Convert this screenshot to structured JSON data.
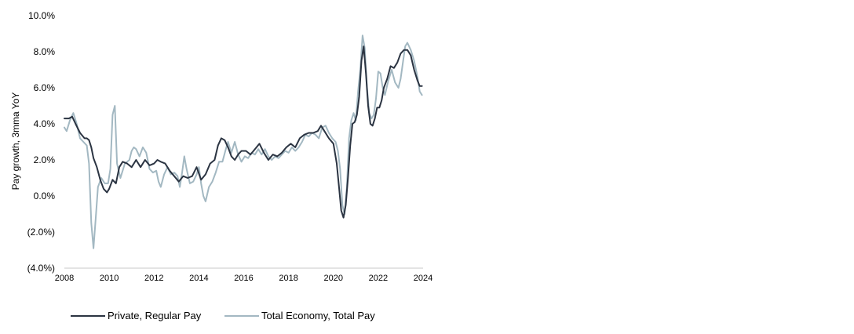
{
  "chart_data": {
    "type": "line",
    "title": "",
    "xlabel": "",
    "ylabel": "Pay growth, 3mma YoY",
    "xlim": [
      2008,
      2024
    ],
    "ylim": [
      -4,
      10
    ],
    "x_ticks": [
      "2008",
      "2010",
      "2012",
      "2014",
      "2016",
      "2018",
      "2020",
      "2022",
      "2024"
    ],
    "y_ticks": [
      "(4.0%)",
      "(2.0%)",
      "0.0%",
      "2.0%",
      "4.0%",
      "6.0%",
      "8.0%",
      "10.0%"
    ],
    "grid": false,
    "legend_position": "bottom",
    "series": [
      {
        "name": "Private, Regular Pay",
        "color": "#2b3442",
        "x": [
          2008.0,
          2008.2,
          2008.35,
          2008.5,
          2008.7,
          2008.9,
          2009.0,
          2009.1,
          2009.2,
          2009.3,
          2009.45,
          2009.6,
          2009.75,
          2009.9,
          2010.0,
          2010.15,
          2010.3,
          2010.45,
          2010.6,
          2010.8,
          2011.0,
          2011.2,
          2011.4,
          2011.6,
          2011.8,
          2012.0,
          2012.15,
          2012.3,
          2012.5,
          2012.7,
          2012.9,
          2013.1,
          2013.3,
          2013.5,
          2013.7,
          2013.9,
          2014.1,
          2014.3,
          2014.5,
          2014.7,
          2014.85,
          2015.0,
          2015.15,
          2015.3,
          2015.45,
          2015.6,
          2015.75,
          2015.9,
          2016.1,
          2016.3,
          2016.5,
          2016.7,
          2016.9,
          2017.1,
          2017.3,
          2017.5,
          2017.7,
          2017.9,
          2018.1,
          2018.3,
          2018.5,
          2018.7,
          2018.9,
          2019.1,
          2019.3,
          2019.45,
          2019.6,
          2019.8,
          2020.0,
          2020.15,
          2020.25,
          2020.35,
          2020.45,
          2020.55,
          2020.65,
          2020.75,
          2020.85,
          2020.95,
          2021.05,
          2021.15,
          2021.25,
          2021.35,
          2021.45,
          2021.55,
          2021.65,
          2021.75,
          2021.85,
          2021.95,
          2022.05,
          2022.15,
          2022.25,
          2022.4,
          2022.55,
          2022.7,
          2022.85,
          2023.0,
          2023.15,
          2023.3,
          2023.45,
          2023.6,
          2023.75,
          2023.85,
          2023.95
        ],
        "values": [
          4.3,
          4.3,
          4.4,
          4.0,
          3.5,
          3.2,
          3.2,
          3.1,
          2.7,
          2.1,
          1.6,
          0.9,
          0.4,
          0.2,
          0.4,
          0.9,
          0.7,
          1.6,
          1.9,
          1.8,
          1.6,
          2.0,
          1.6,
          2.0,
          1.7,
          1.8,
          2.0,
          1.9,
          1.8,
          1.4,
          1.1,
          0.8,
          1.1,
          1.0,
          1.1,
          1.6,
          0.9,
          1.2,
          1.8,
          2.0,
          2.8,
          3.2,
          3.1,
          2.7,
          2.2,
          2.0,
          2.3,
          2.5,
          2.5,
          2.3,
          2.6,
          2.9,
          2.4,
          2.0,
          2.3,
          2.2,
          2.4,
          2.7,
          2.9,
          2.7,
          3.2,
          3.4,
          3.5,
          3.5,
          3.6,
          3.9,
          3.6,
          3.2,
          2.9,
          1.8,
          0.5,
          -0.8,
          -1.2,
          -0.5,
          1.0,
          2.8,
          4.0,
          4.1,
          4.5,
          5.5,
          7.5,
          8.3,
          6.8,
          5.0,
          4.0,
          3.9,
          4.3,
          4.9,
          4.9,
          5.3,
          6.0,
          6.5,
          7.2,
          7.1,
          7.4,
          7.9,
          8.1,
          8.1,
          7.8,
          7.0,
          6.4,
          6.1,
          6.1
        ]
      },
      {
        "name": "Total Economy, Total Pay",
        "color": "#a3b8c2",
        "x": [
          2008.0,
          2008.1,
          2008.25,
          2008.4,
          2008.55,
          2008.7,
          2008.85,
          2009.0,
          2009.1,
          2009.2,
          2009.3,
          2009.4,
          2009.5,
          2009.65,
          2009.8,
          2009.95,
          2010.05,
          2010.15,
          2010.25,
          2010.35,
          2010.5,
          2010.7,
          2010.9,
          2011.0,
          2011.1,
          2011.2,
          2011.35,
          2011.5,
          2011.65,
          2011.8,
          2011.95,
          2012.1,
          2012.2,
          2012.3,
          2012.45,
          2012.6,
          2012.75,
          2012.9,
          2013.05,
          2013.15,
          2013.25,
          2013.35,
          2013.45,
          2013.6,
          2013.75,
          2013.9,
          2014.0,
          2014.1,
          2014.2,
          2014.3,
          2014.45,
          2014.6,
          2014.75,
          2014.9,
          2015.05,
          2015.2,
          2015.3,
          2015.45,
          2015.6,
          2015.75,
          2015.9,
          2016.05,
          2016.2,
          2016.35,
          2016.5,
          2016.65,
          2016.8,
          2016.95,
          2017.1,
          2017.25,
          2017.4,
          2017.55,
          2017.7,
          2017.85,
          2018.0,
          2018.15,
          2018.3,
          2018.45,
          2018.6,
          2018.75,
          2018.9,
          2019.05,
          2019.2,
          2019.35,
          2019.5,
          2019.65,
          2019.8,
          2019.95,
          2020.1,
          2020.2,
          2020.3,
          2020.4,
          2020.5,
          2020.6,
          2020.7,
          2020.8,
          2020.9,
          2021.0,
          2021.1,
          2021.2,
          2021.3,
          2021.4,
          2021.5,
          2021.6,
          2021.7,
          2021.8,
          2021.9,
          2022.0,
          2022.1,
          2022.2,
          2022.3,
          2022.45,
          2022.6,
          2022.75,
          2022.9,
          2023.0,
          2023.1,
          2023.2,
          2023.3,
          2023.45,
          2023.6,
          2023.75,
          2023.85,
          2023.95
        ],
        "values": [
          3.8,
          3.6,
          4.2,
          4.6,
          4.0,
          3.2,
          3.0,
          2.8,
          1.8,
          -1.5,
          -2.9,
          -1.2,
          0.5,
          1.0,
          0.7,
          0.7,
          1.5,
          4.5,
          5.0,
          1.8,
          1.0,
          1.8,
          2.0,
          2.5,
          2.7,
          2.6,
          2.2,
          2.7,
          2.4,
          1.5,
          1.3,
          1.4,
          0.8,
          0.5,
          1.2,
          1.6,
          1.2,
          1.3,
          1.1,
          0.5,
          1.3,
          2.2,
          1.5,
          0.7,
          0.8,
          1.2,
          1.6,
          0.7,
          0.0,
          -0.3,
          0.5,
          0.8,
          1.3,
          1.9,
          1.9,
          2.6,
          3.0,
          2.4,
          3.0,
          2.3,
          1.9,
          2.2,
          2.1,
          2.4,
          2.3,
          2.6,
          2.3,
          2.6,
          2.2,
          2.0,
          2.2,
          2.1,
          2.3,
          2.5,
          2.4,
          2.7,
          2.5,
          2.7,
          3.0,
          3.4,
          3.3,
          3.5,
          3.4,
          3.2,
          3.8,
          3.9,
          3.5,
          3.2,
          3.0,
          2.5,
          1.5,
          -0.5,
          -1.0,
          0.5,
          3.2,
          4.2,
          4.6,
          4.2,
          5.8,
          7.0,
          8.9,
          8.2,
          6.0,
          4.6,
          4.3,
          4.5,
          5.4,
          6.9,
          6.8,
          6.0,
          5.6,
          6.4,
          7.0,
          6.3,
          6.0,
          6.5,
          7.4,
          8.3,
          8.5,
          8.1,
          7.5,
          6.6,
          5.8,
          5.6
        ]
      }
    ]
  }
}
